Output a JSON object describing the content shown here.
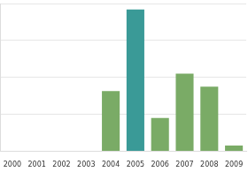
{
  "chart_data": {
    "type": "bar",
    "categories": [
      "2000",
      "2001",
      "2002",
      "2003",
      "2004",
      "2005",
      "2006",
      "2007",
      "2008",
      "2009"
    ],
    "values": [
      0,
      0,
      0,
      0,
      1.63,
      3.84,
      0.9,
      2.1,
      1.75,
      0.15
    ],
    "colors": [
      "#7aab66",
      "#7aab66",
      "#7aab66",
      "#7aab66",
      "#7aab66",
      "#3a9a97",
      "#7aab66",
      "#7aab66",
      "#7aab66",
      "#7aab66"
    ],
    "ylim": [
      0,
      4
    ],
    "yticks": [
      0,
      1,
      2,
      3,
      4
    ],
    "grid": true,
    "tick_labels": "x"
  }
}
